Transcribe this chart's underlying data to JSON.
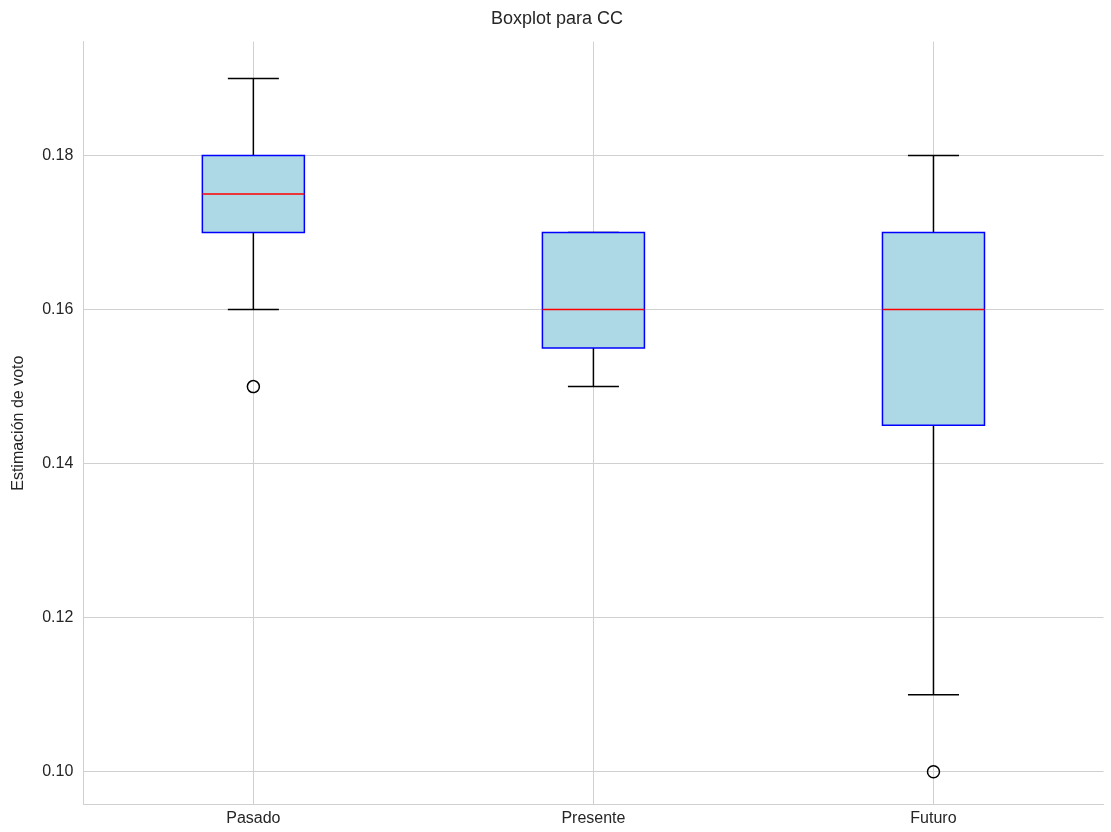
{
  "chart_data": {
    "type": "box",
    "title": "Boxplot para CC",
    "ylabel": "Estimación de voto",
    "categories": [
      "Pasado",
      "Presente",
      "Futuro"
    ],
    "boxes": [
      {
        "low": 0.16,
        "q1": 0.17,
        "median": 0.175,
        "q3": 0.18,
        "high": 0.19,
        "outliers": [
          0.15
        ]
      },
      {
        "low": 0.15,
        "q1": 0.155,
        "median": 0.16,
        "q3": 0.17,
        "high": 0.17
      },
      {
        "low": 0.11,
        "q1": 0.145,
        "median": 0.16,
        "q3": 0.17,
        "high": 0.18,
        "outliers": [
          0.1
        ]
      }
    ],
    "color": "#add8e6",
    "ylim": [
      0.0957,
      0.1948
    ],
    "yticks": [
      {
        "value": 0.1,
        "label": "0.10"
      },
      0.12,
      0.14,
      0.16,
      0.18
    ],
    "grid": true
  }
}
